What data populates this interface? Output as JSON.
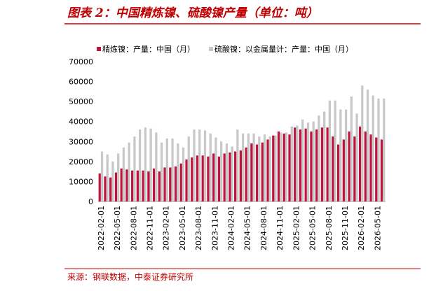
{
  "chart_data": {
    "type": "bar",
    "title": "图表 2：中国精炼镍、硫酸镍产量（单位：吨）",
    "source": "来源：钢联数据，中泰证券研究所",
    "categories": [
      "2022-02-01",
      null,
      null,
      "2022-05-01",
      null,
      null,
      "2022-08-01",
      null,
      null,
      "2022-11-01",
      null,
      null,
      "2023-02-01",
      null,
      null,
      "2023-05-01",
      null,
      null,
      "2023-08-01",
      null,
      null,
      "2023-11-01",
      null,
      null,
      "2024-02-01",
      null,
      null,
      "2024-05-01",
      null,
      null,
      "2024-08-01",
      null,
      null,
      "2024-11-01",
      null,
      null,
      "2025-02-01",
      null,
      null,
      "2025-05-01",
      null,
      null,
      "2025-08-01",
      null,
      null,
      "2025-11-01",
      null,
      null,
      "2026-02-01",
      null,
      null,
      "2026-05-01",
      null
    ],
    "series": [
      {
        "name": "精炼镍：产量：中国（月）",
        "color": "#c0143c",
        "values": [
          14000,
          12500,
          12000,
          14500,
          16500,
          16000,
          15500,
          15500,
          15500,
          15000,
          16500,
          15000,
          17000,
          17000,
          17500,
          19000,
          21000,
          22000,
          23000,
          23000,
          22500,
          24000,
          22500,
          24000,
          24500,
          25000,
          25500,
          27000,
          29000,
          28500,
          29500,
          31000,
          33000,
          35000,
          34000,
          33500,
          37000,
          36000,
          36500,
          35000,
          36000,
          37000,
          37000,
          32500,
          28500,
          31000,
          35000,
          32500,
          37500,
          35000,
          33500,
          32000,
          31000
        ]
      },
      {
        "name": "硫酸镍：以金属量计：产量：中国（月）",
        "color": "#c8c8c8",
        "values": [
          25000,
          23500,
          20000,
          24000,
          27000,
          29500,
          32500,
          36000,
          37000,
          36500,
          34500,
          29500,
          31500,
          31500,
          29000,
          27000,
          32500,
          36000,
          36000,
          35500,
          34000,
          32000,
          30000,
          29000,
          27500,
          36000,
          34000,
          34000,
          34000,
          32500,
          33500,
          32500,
          33000,
          34500,
          34500,
          37500,
          38000,
          41000,
          39500,
          40000,
          43000,
          45000,
          50500,
          50500,
          46000,
          46000,
          52500,
          44000,
          58000,
          56000,
          53000,
          51500,
          51500
        ]
      }
    ],
    "ylim": [
      0,
      70000
    ],
    "yticks": [
      0,
      10000,
      20000,
      30000,
      40000,
      50000,
      60000,
      70000
    ]
  }
}
